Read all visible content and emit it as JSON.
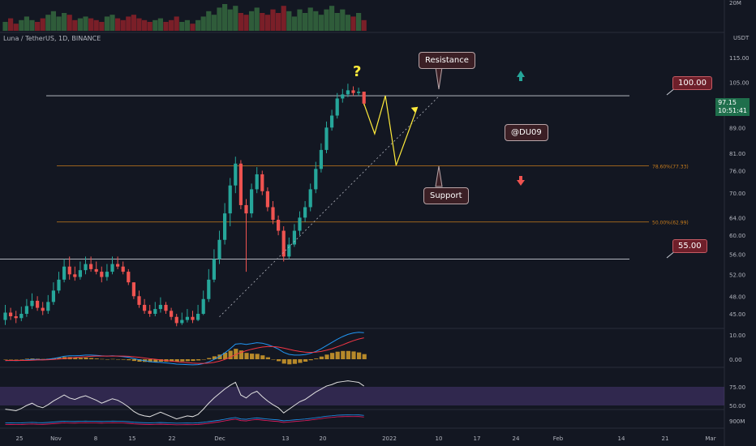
{
  "header": {
    "symbol_title": "Luna / TetherUS, 1D, BINANCE"
  },
  "axis": {
    "currency": "USDT",
    "price_ticks": [
      "115.00",
      "105.00",
      "97.15",
      "89.00",
      "81.00",
      "76.00",
      "70.00",
      "64.00",
      "60.00",
      "56.00",
      "52.00",
      "48.00",
      "45.00"
    ],
    "time_ticks": [
      "25",
      "Nov",
      "8",
      "15",
      "22",
      "Dec",
      "13",
      "20",
      "2022",
      "10",
      "17",
      "24",
      "Feb",
      "14",
      "21",
      "Mar"
    ],
    "volume_label": "20M",
    "macd_ticks": [
      "10.00",
      "0.00"
    ],
    "rsi_ticks": [
      "75.00",
      "50.00"
    ],
    "bottom_label": "900M"
  },
  "last_price": {
    "price": "97.15",
    "timer": "10:51:41"
  },
  "annotations": {
    "question": "?",
    "resistance": "Resistance",
    "support": "Support",
    "author": "@DU09",
    "level_high": "100.00",
    "level_low": "55.00",
    "fib_786": "78.60%(77.33)",
    "fib_500": "50.00%(62.99)"
  },
  "colors": {
    "up": "#26a69a",
    "down": "#ef5350",
    "macd": "#2196f3",
    "signal": "#f23645",
    "rsi": "#e0e0e0",
    "rsi_band": "#7e57c2",
    "fib": "#c77c1c",
    "projection": "#ffeb3b"
  },
  "chart_data": {
    "type": "candlestick",
    "title": "Luna / TetherUS, 1D, BINANCE",
    "y_scale": "log",
    "ylim": [
      43,
      128
    ],
    "x": [
      "Oct 21",
      "Oct 22",
      "Oct 23",
      "Oct 24",
      "Oct 25",
      "Oct 26",
      "Oct 27",
      "Oct 28",
      "Oct 29",
      "Oct 30",
      "Oct 31",
      "Nov 1",
      "Nov 2",
      "Nov 3",
      "Nov 4",
      "Nov 5",
      "Nov 6",
      "Nov 7",
      "Nov 8",
      "Nov 9",
      "Nov 10",
      "Nov 11",
      "Nov 12",
      "Nov 13",
      "Nov 14",
      "Nov 15",
      "Nov 16",
      "Nov 17",
      "Nov 18",
      "Nov 19",
      "Nov 20",
      "Nov 21",
      "Nov 22",
      "Nov 23",
      "Nov 24",
      "Nov 25",
      "Nov 26",
      "Nov 27",
      "Nov 28",
      "Nov 29",
      "Nov 30",
      "Dec 1",
      "Dec 2",
      "Dec 3",
      "Dec 4",
      "Dec 5",
      "Dec 6",
      "Dec 7",
      "Dec 8",
      "Dec 9",
      "Dec 10",
      "Dec 11",
      "Dec 12",
      "Dec 13",
      "Dec 14",
      "Dec 15",
      "Dec 16",
      "Dec 17",
      "Dec 18",
      "Dec 19",
      "Dec 20",
      "Dec 21",
      "Dec 22",
      "Dec 23",
      "Dec 24",
      "Dec 25",
      "Dec 26",
      "Dec 27"
    ],
    "open": [
      44.0,
      45.2,
      44.6,
      44.3,
      45.0,
      46.3,
      47.2,
      46.0,
      45.5,
      47.0,
      49.0,
      51.0,
      53.5,
      52.0,
      51.5,
      52.8,
      54.0,
      53.0,
      52.5,
      51.5,
      52.5,
      54.0,
      53.5,
      52.5,
      50.5,
      48.0,
      46.5,
      45.5,
      45.0,
      45.8,
      46.5,
      45.5,
      44.5,
      43.5,
      44.0,
      44.5,
      44.0,
      45.0,
      47.5,
      51.0,
      55.0,
      59.0,
      65.0,
      72.0,
      78.0,
      67.0,
      65.0,
      71.0,
      75.0,
      70.5,
      66.5,
      63.5,
      61.0,
      55.5,
      58.0,
      61.0,
      64.0,
      66.5,
      71.0,
      76.5,
      82.0,
      89.0,
      93.0,
      99.0,
      100.5,
      102.0,
      101.0,
      101.5
    ],
    "close": [
      45.2,
      44.6,
      44.3,
      45.0,
      46.3,
      47.2,
      46.0,
      45.5,
      47.0,
      49.0,
      51.0,
      53.5,
      52.0,
      51.5,
      52.8,
      54.0,
      53.0,
      52.5,
      51.5,
      52.5,
      54.0,
      53.5,
      52.5,
      50.5,
      48.0,
      46.5,
      45.5,
      45.0,
      45.8,
      46.5,
      45.5,
      44.5,
      43.5,
      44.0,
      44.5,
      44.0,
      45.0,
      47.5,
      51.0,
      55.0,
      59.0,
      65.0,
      72.0,
      78.0,
      67.0,
      65.0,
      71.0,
      75.0,
      70.5,
      66.5,
      63.5,
      61.0,
      55.5,
      58.0,
      61.0,
      64.0,
      66.5,
      71.0,
      76.5,
      82.0,
      89.0,
      93.0,
      99.0,
      100.5,
      102.0,
      101.0,
      101.5,
      97.15
    ],
    "high": [
      46.5,
      46.0,
      45.5,
      46.2,
      47.5,
      48.5,
      48.0,
      47.0,
      48.2,
      50.5,
      52.5,
      55.0,
      55.5,
      53.5,
      54.5,
      55.5,
      55.5,
      54.5,
      53.5,
      54.0,
      55.5,
      55.5,
      54.5,
      53.0,
      50.5,
      49.0,
      47.5,
      46.5,
      47.0,
      47.8,
      47.0,
      46.0,
      45.0,
      45.2,
      45.8,
      45.5,
      46.5,
      49.0,
      53.0,
      57.0,
      61.0,
      67.5,
      74.0,
      80.0,
      79.0,
      68.5,
      72.5,
      77.0,
      76.0,
      71.5,
      68.0,
      64.5,
      62.0,
      59.5,
      62.5,
      65.5,
      68.0,
      72.5,
      78.5,
      84.0,
      91.0,
      95.0,
      101.0,
      102.5,
      104.5,
      103.5,
      103.0,
      101.5
    ],
    "low": [
      43.2,
      44.0,
      43.5,
      43.8,
      44.5,
      45.8,
      45.5,
      44.8,
      45.0,
      46.5,
      48.5,
      50.5,
      51.0,
      50.8,
      51.0,
      52.0,
      52.5,
      52.0,
      50.5,
      50.8,
      52.0,
      53.0,
      52.0,
      50.0,
      47.5,
      46.0,
      45.0,
      44.5,
      44.6,
      45.2,
      45.0,
      44.0,
      43.0,
      43.2,
      43.6,
      43.5,
      43.8,
      44.8,
      47.0,
      50.5,
      54.0,
      58.0,
      62.0,
      70.0,
      66.0,
      52.5,
      64.0,
      70.0,
      69.5,
      65.5,
      62.5,
      60.0,
      54.5,
      55.0,
      57.5,
      60.0,
      63.0,
      65.5,
      70.0,
      75.5,
      81.0,
      88.0,
      92.0,
      97.5,
      99.5,
      100.0,
      100.0,
      96.5
    ],
    "volume": [
      5,
      7,
      4,
      6,
      8,
      6,
      5,
      7,
      9,
      11,
      8,
      10,
      9,
      6,
      7,
      8,
      7,
      6,
      5,
      8,
      9,
      7,
      6,
      8,
      9,
      7,
      6,
      5,
      6,
      7,
      5,
      6,
      8,
      5,
      6,
      4,
      6,
      8,
      11,
      9,
      13,
      15,
      12,
      14,
      10,
      9,
      11,
      13,
      10,
      9,
      12,
      10,
      14,
      11,
      8,
      12,
      10,
      13,
      11,
      9,
      12,
      14,
      10,
      12,
      9,
      8,
      10,
      6
    ],
    "levels": {
      "resistance": 100.0,
      "fib_786": 77.33,
      "fib_500": 62.99,
      "support": 55.0
    },
    "trendline": [
      {
        "x": "Nov 30",
        "y": 44.5
      },
      {
        "x": "Jan 1",
        "y": 100.0
      }
    ],
    "projection": [
      {
        "x": "Dec 27",
        "y": 97.15
      },
      {
        "x": "Dec 29",
        "y": 87.0
      },
      {
        "x": "Dec 31",
        "y": 100.0
      },
      {
        "x": "Jan 2",
        "y": 77.5
      },
      {
        "x": "Jan 6",
        "y": 96.0
      }
    ],
    "macd": {
      "macd": [
        -0.6,
        -0.5,
        -0.6,
        -0.5,
        -0.3,
        -0.1,
        -0.1,
        -0.2,
        0.0,
        0.3,
        0.7,
        1.2,
        1.4,
        1.4,
        1.5,
        1.7,
        1.7,
        1.6,
        1.4,
        1.3,
        1.4,
        1.3,
        1.1,
        0.8,
        0.3,
        -0.2,
        -0.6,
        -1.0,
        -1.2,
        -1.3,
        -1.5,
        -1.7,
        -2.0,
        -2.1,
        -2.2,
        -2.3,
        -2.2,
        -1.8,
        -1.1,
        -0.1,
        1.1,
        2.6,
        4.3,
        6.2,
        6.4,
        6.1,
        6.4,
        6.8,
        6.6,
        6.0,
        5.2,
        4.2,
        2.8,
        2.0,
        1.7,
        1.7,
        1.9,
        2.4,
        3.2,
        4.3,
        5.6,
        6.9,
        8.2,
        9.3,
        10.2,
        10.8,
        11.1,
        10.9
      ],
      "signal": [
        -0.5,
        -0.5,
        -0.5,
        -0.5,
        -0.5,
        -0.4,
        -0.3,
        -0.3,
        -0.2,
        -0.1,
        0.1,
        0.3,
        0.5,
        0.7,
        0.9,
        1.0,
        1.2,
        1.3,
        1.3,
        1.3,
        1.3,
        1.3,
        1.3,
        1.2,
        1.0,
        0.8,
        0.5,
        0.2,
        0.0,
        -0.3,
        -0.5,
        -0.8,
        -1.0,
        -1.2,
        -1.4,
        -1.6,
        -1.7,
        -1.7,
        -1.6,
        -1.3,
        -0.8,
        -0.1,
        0.8,
        1.9,
        2.8,
        3.5,
        4.1,
        4.6,
        5.0,
        5.2,
        5.2,
        5.0,
        4.6,
        4.1,
        3.6,
        3.2,
        2.9,
        2.8,
        2.9,
        3.2,
        3.7,
        4.3,
        5.1,
        5.9,
        6.8,
        7.6,
        8.3,
        8.8
      ]
    },
    "rsi": [
      45,
      44,
      43,
      46,
      50,
      53,
      49,
      47,
      51,
      56,
      60,
      64,
      60,
      58,
      61,
      63,
      60,
      57,
      53,
      56,
      59,
      57,
      53,
      48,
      42,
      38,
      36,
      35,
      38,
      41,
      38,
      35,
      32,
      34,
      36,
      35,
      38,
      45,
      53,
      60,
      66,
      72,
      77,
      81,
      64,
      60,
      66,
      69,
      62,
      56,
      51,
      47,
      40,
      45,
      50,
      55,
      58,
      63,
      68,
      72,
      76,
      78,
      81,
      82,
      83,
      82,
      81,
      76
    ]
  }
}
